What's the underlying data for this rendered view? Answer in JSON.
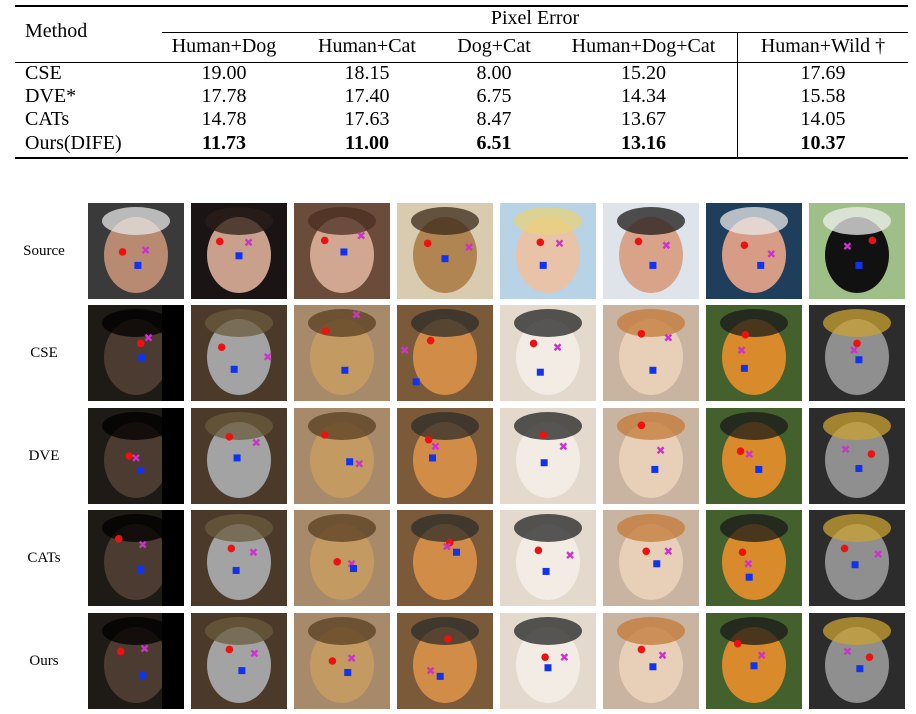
{
  "table": {
    "method_header": "Method",
    "group_header": "Pixel Error",
    "columns": [
      "Human+Dog",
      "Human+Cat",
      "Dog+Cat",
      "Human+Dog+Cat",
      "Human+Wild †"
    ],
    "rows": [
      {
        "method": "CSE",
        "values": [
          "19.00",
          "18.15",
          "8.00",
          "15.20",
          "17.69"
        ],
        "bold": false
      },
      {
        "method": "DVE*",
        "values": [
          "17.78",
          "17.40",
          "6.75",
          "14.34",
          "15.58"
        ],
        "bold": false
      },
      {
        "method": "CATs",
        "values": [
          "14.78",
          "17.63",
          "8.47",
          "13.67",
          "14.05"
        ],
        "bold": false
      },
      {
        "method": "Ours(DIFE)",
        "values": [
          "11.73",
          "11.00",
          "6.51",
          "13.16",
          "10.37"
        ],
        "bold": true
      }
    ]
  },
  "figure": {
    "row_labels": [
      "Source",
      "CSE",
      "DVE",
      "CATs",
      "Ours"
    ],
    "source_subjects": [
      "man",
      "woman-dark-hair",
      "woman-brown-hair",
      "chihuahua",
      "blonde-woman",
      "smiling-man",
      "laughing-man",
      "black-white-dog"
    ],
    "target_subjects": [
      "black-dog",
      "grey-persian-cat",
      "lion",
      "orange-cat",
      "white-pomeranian",
      "calico-kitten",
      "tiger",
      "grey-cat"
    ],
    "keypoint_colors": {
      "red": "#ee1111",
      "magenta": "#cc33cc",
      "blue": "#1133ee"
    }
  }
}
